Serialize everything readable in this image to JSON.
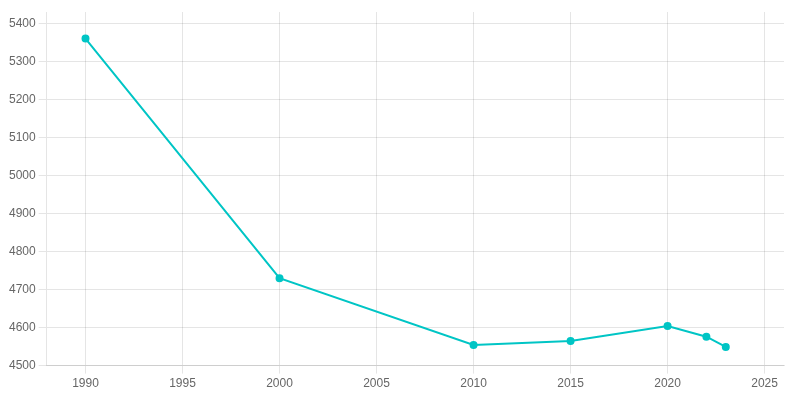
{
  "chart_data": {
    "type": "line",
    "x": [
      1990,
      2000,
      2010,
      2015,
      2020,
      2022,
      2023
    ],
    "values": [
      5360,
      4730,
      4554,
      4565,
      4604,
      4576,
      4549
    ],
    "color": "#00C5C5",
    "marker": "circle",
    "xlim": [
      1988,
      2026
    ],
    "xticks": [
      1990,
      1995,
      2000,
      2005,
      2010,
      2015,
      2020,
      2025
    ],
    "ylim": [
      4500,
      5430
    ],
    "yticks": [
      4500,
      4600,
      4700,
      4800,
      4900,
      5000,
      5100,
      5200,
      5300,
      5400
    ],
    "grid": true
  }
}
